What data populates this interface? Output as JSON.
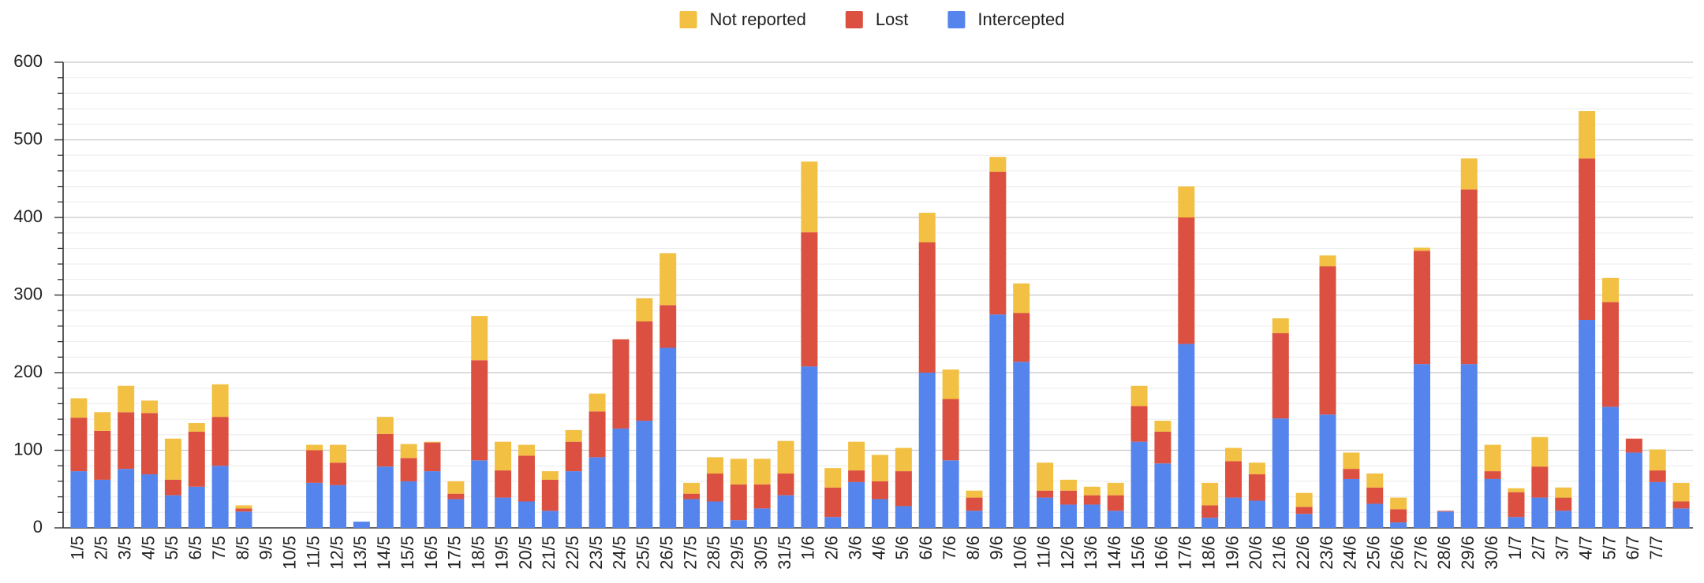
{
  "chart_data": {
    "type": "stacked_bar",
    "categories": [
      "1/5",
      "2/5",
      "3/5",
      "4/5",
      "5/5",
      "6/5",
      "7/5",
      "8/5",
      "9/5",
      "10/5",
      "11/5",
      "12/5",
      "13/5",
      "14/5",
      "15/5",
      "16/5",
      "17/5",
      "18/5",
      "19/5",
      "20/5",
      "21/5",
      "22/5",
      "23/5",
      "24/5",
      "25/5",
      "26/5",
      "27/5",
      "28/5",
      "29/5",
      "30/5",
      "31/5",
      "1/6",
      "2/6",
      "3/6",
      "4/6",
      "5/6",
      "6/6",
      "7/6",
      "8/6",
      "9/6",
      "10/6",
      "11/6",
      "12/6",
      "13/6",
      "14/6",
      "15/6",
      "16/6",
      "17/6",
      "18/6",
      "19/6",
      "20/6",
      "21/6",
      "22/6",
      "23/6",
      "24/6",
      "25/6",
      "26/6",
      "27/6",
      "28/6",
      "29/6",
      "30/6",
      "1/7",
      "2/7",
      "3/7",
      "4/7",
      "5/7",
      "6/7",
      "7/7",
      null
    ],
    "series": [
      {
        "name": "Intercepted",
        "color": "#5585ec",
        "values": [
          73,
          62,
          76,
          69,
          42,
          53,
          80,
          21,
          0,
          0,
          58,
          55,
          8,
          79,
          60,
          73,
          37,
          87,
          39,
          34,
          22,
          73,
          91,
          128,
          138,
          232,
          37,
          34,
          10,
          25,
          42,
          208,
          14,
          59,
          37,
          28,
          200,
          87,
          22,
          275,
          214,
          39,
          30,
          30,
          22,
          111,
          83,
          237,
          13,
          39,
          35,
          141,
          18,
          146,
          63,
          31,
          7,
          211,
          21,
          211,
          63,
          14,
          39,
          22,
          268,
          156,
          97,
          59,
          25
        ]
      },
      {
        "name": "Lost",
        "color": "#db5040",
        "values": [
          69,
          63,
          73,
          79,
          20,
          71,
          63,
          4,
          0,
          0,
          42,
          29,
          0,
          42,
          30,
          37,
          7,
          129,
          35,
          59,
          40,
          38,
          59,
          115,
          128,
          55,
          7,
          36,
          46,
          31,
          28,
          173,
          38,
          15,
          23,
          45,
          168,
          79,
          17,
          184,
          63,
          9,
          18,
          12,
          20,
          46,
          41,
          163,
          16,
          47,
          34,
          110,
          9,
          191,
          13,
          21,
          17,
          146,
          1,
          225,
          10,
          32,
          40,
          17,
          208,
          135,
          18,
          15,
          9
        ]
      },
      {
        "name": "Not reported",
        "color": "#f2c042",
        "values": [
          25,
          24,
          34,
          16,
          53,
          11,
          42,
          4,
          0,
          0,
          7,
          23,
          0,
          22,
          18,
          1,
          16,
          57,
          37,
          14,
          11,
          15,
          23,
          0,
          30,
          67,
          14,
          21,
          33,
          33,
          42,
          91,
          25,
          37,
          34,
          30,
          38,
          38,
          9,
          19,
          38,
          36,
          14,
          11,
          16,
          26,
          14,
          40,
          29,
          17,
          15,
          19,
          18,
          14,
          21,
          18,
          15,
          4,
          0,
          40,
          34,
          5,
          38,
          13,
          61,
          31,
          0,
          27,
          24
        ]
      }
    ],
    "ylim": [
      0,
      600
    ],
    "yticks": [
      0,
      100,
      200,
      300,
      400,
      500,
      600
    ],
    "yminor_ticks": [
      20,
      40,
      60,
      80,
      120,
      140,
      160,
      180,
      220,
      240,
      260,
      280,
      320,
      340,
      360,
      380,
      420,
      440,
      460,
      480,
      520,
      540,
      560,
      580
    ],
    "grid": true,
    "legend": "top"
  }
}
